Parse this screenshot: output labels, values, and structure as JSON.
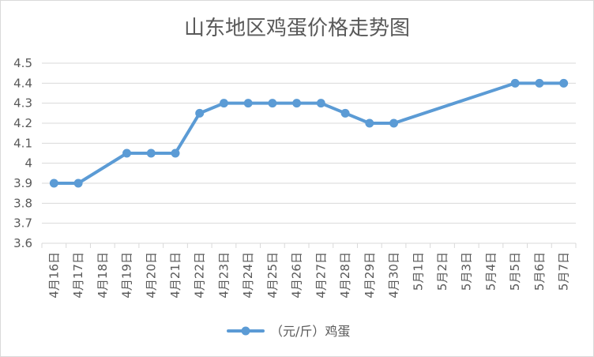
{
  "chart_data": {
    "type": "line",
    "title": "山东地区鸡蛋价格走势图",
    "categories": [
      "4月16日",
      "4月17日",
      "4月18日",
      "4月19日",
      "4月20日",
      "4月21日",
      "4月22日",
      "4月23日",
      "4月24日",
      "4月25日",
      "4月26日",
      "4月27日",
      "4月28日",
      "4月29日",
      "4月30日",
      "5月1日",
      "5月2日",
      "5月3日",
      "5月4日",
      "5月5日",
      "5月6日",
      "5月7日"
    ],
    "series": [
      {
        "name": "（元/斤）鸡蛋",
        "color": "#5b9bd5",
        "values": [
          3.9,
          3.9,
          null,
          4.05,
          4.05,
          4.05,
          4.25,
          4.3,
          4.3,
          4.3,
          4.3,
          4.3,
          4.25,
          4.2,
          4.2,
          null,
          null,
          null,
          null,
          4.4,
          4.4,
          4.4
        ]
      }
    ],
    "ylim": [
      3.6,
      4.5
    ],
    "yticks": [
      "3.6",
      "3.7",
      "3.8",
      "3.9",
      "4",
      "4.1",
      "4.2",
      "4.3",
      "4.4",
      "4.5"
    ],
    "grid": true,
    "legend_position": "bottom",
    "connect_gaps": true,
    "xlabel": "",
    "ylabel": ""
  }
}
